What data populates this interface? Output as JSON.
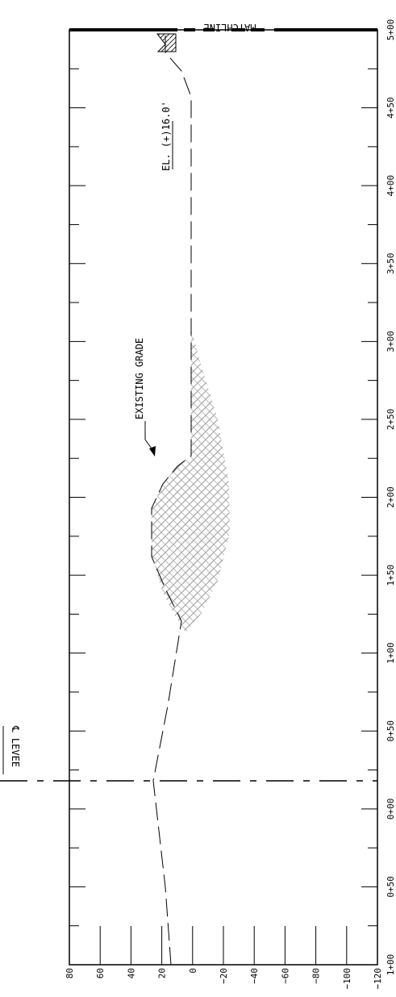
{
  "drawing": {
    "matchline_label": "MATCHLINE",
    "levee_label": "℄ LEVEE",
    "elevation_label": "EL. (+)16.0'",
    "existing_grade_label": "EXISTING GRADE"
  },
  "chart_data": {
    "type": "profile",
    "station_axis": {
      "labels": [
        "5+00",
        "4+50",
        "4+00",
        "3+50",
        "3+00",
        "2+50",
        "2+00",
        "1+50",
        "1+00",
        "0+50",
        "0+00",
        "0+50",
        "1+00"
      ],
      "range_ft": [
        500,
        -100
      ]
    },
    "elevation_axis": {
      "labels": [
        "80",
        "60",
        "40",
        "20",
        "0",
        "-20",
        "-40",
        "-60",
        "-80",
        "-100",
        "-120"
      ],
      "range_ft": [
        80,
        -120
      ]
    },
    "existing_grade": [
      {
        "station": -100,
        "elevation": 12
      },
      {
        "station": 0,
        "elevation": 25
      },
      {
        "station": 50,
        "elevation": 17
      },
      {
        "station": 100,
        "elevation": 10
      },
      {
        "station": 150,
        "elevation": 25
      },
      {
        "station": 190,
        "elevation": 25
      },
      {
        "station": 220,
        "elevation": 3
      },
      {
        "station": 450,
        "elevation": 3
      },
      {
        "station": 480,
        "elevation": 17
      },
      {
        "station": 500,
        "elevation": 17
      }
    ],
    "cut_fill_section": [
      {
        "station": 100,
        "elevation": 0
      },
      {
        "station": 150,
        "elevation": -22
      },
      {
        "station": 200,
        "elevation": -27
      },
      {
        "station": 250,
        "elevation": -22
      },
      {
        "station": 290,
        "elevation": -2
      }
    ],
    "elevation_reference_ft": 16.0,
    "levee_centerline_station": 0
  }
}
